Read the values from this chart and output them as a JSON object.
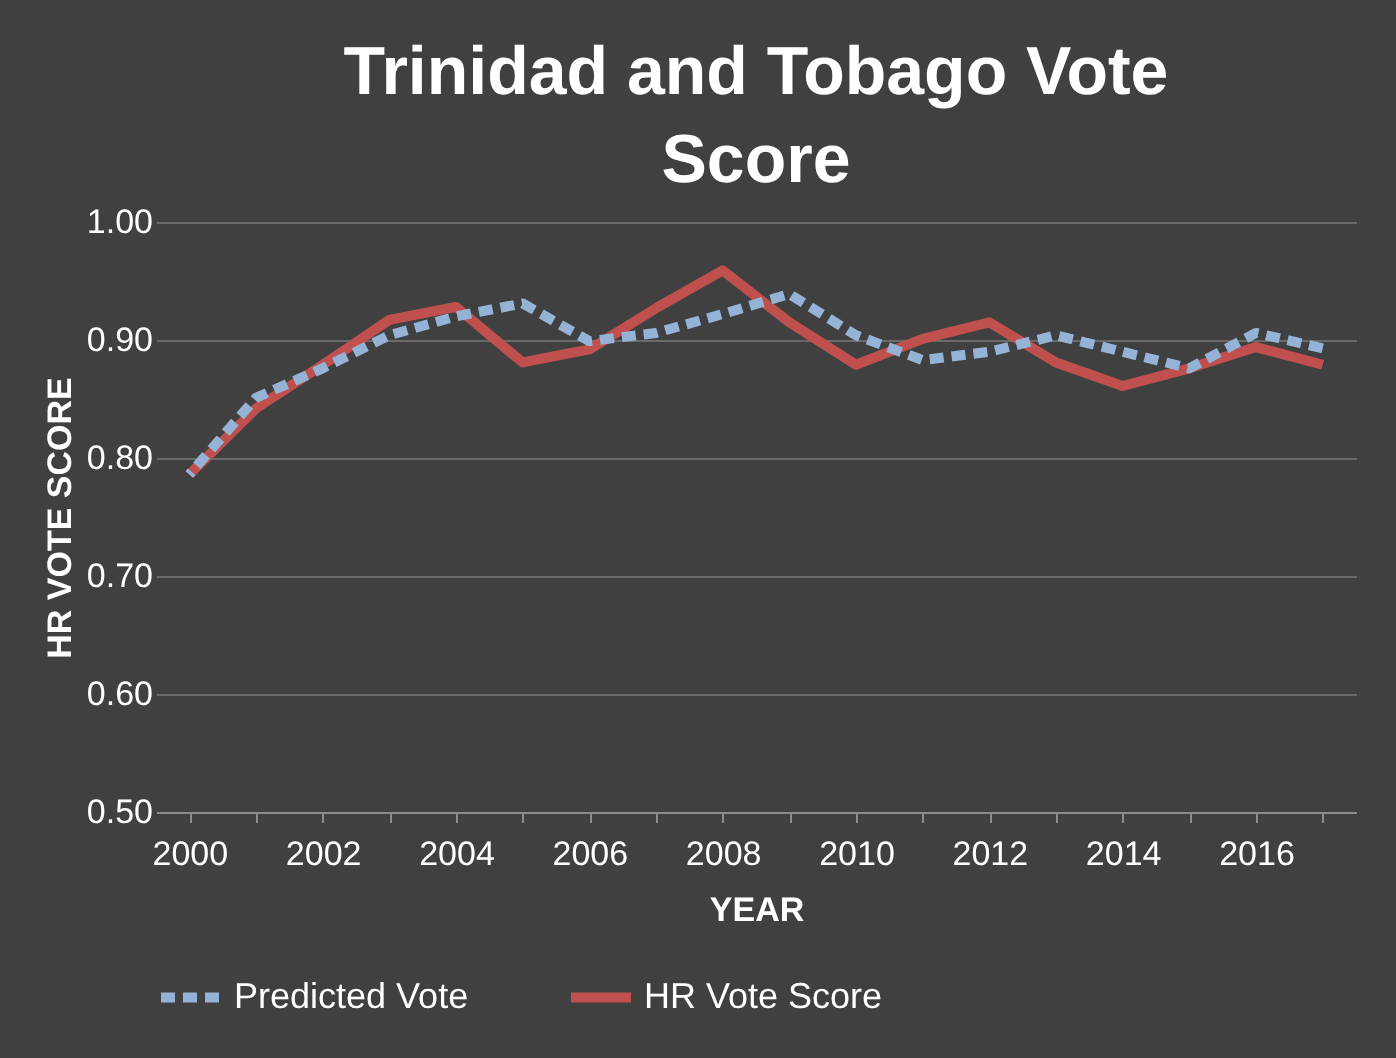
{
  "chart_data": {
    "type": "line",
    "title": "Trinidad and Tobago Vote Score",
    "xlabel": "YEAR",
    "ylabel": "HR VOTE SCORE",
    "categories": [
      "2000",
      null,
      "2002",
      null,
      "2004",
      null,
      "2006",
      null,
      "2008",
      null,
      "2010",
      null,
      "2012",
      null,
      "2014",
      null,
      "2016",
      null
    ],
    "series": [
      {
        "name": "Predicted Vote",
        "color": "#95b3d7",
        "line_style": "dashed",
        "values": [
          0.786,
          0.851,
          0.876,
          0.904,
          0.92,
          0.931,
          0.899,
          0.906,
          0.922,
          0.939,
          0.904,
          0.883,
          0.89,
          0.904,
          0.89,
          0.876,
          0.906,
          0.893
        ]
      },
      {
        "name": "HR Vote Score",
        "color": "#c0504d",
        "line_style": "solid",
        "values": [
          0.786,
          0.842,
          0.879,
          0.917,
          0.928,
          0.881,
          0.892,
          0.927,
          0.959,
          0.915,
          0.879,
          0.901,
          0.915,
          0.881,
          0.861,
          0.876,
          0.894,
          0.879
        ]
      }
    ],
    "ylim": [
      0.5,
      1.0
    ],
    "yticks": [
      {
        "value": 0.5,
        "label": "0.50"
      },
      {
        "value": 0.6,
        "label": "0.60"
      },
      {
        "value": 0.7,
        "label": "0.70"
      },
      {
        "value": 0.8,
        "label": "0.80"
      },
      {
        "value": 0.9,
        "label": "0.90"
      },
      {
        "value": 1.0,
        "label": "1.00"
      }
    ],
    "grid": "y",
    "legend": "bottom",
    "marker": "none"
  }
}
